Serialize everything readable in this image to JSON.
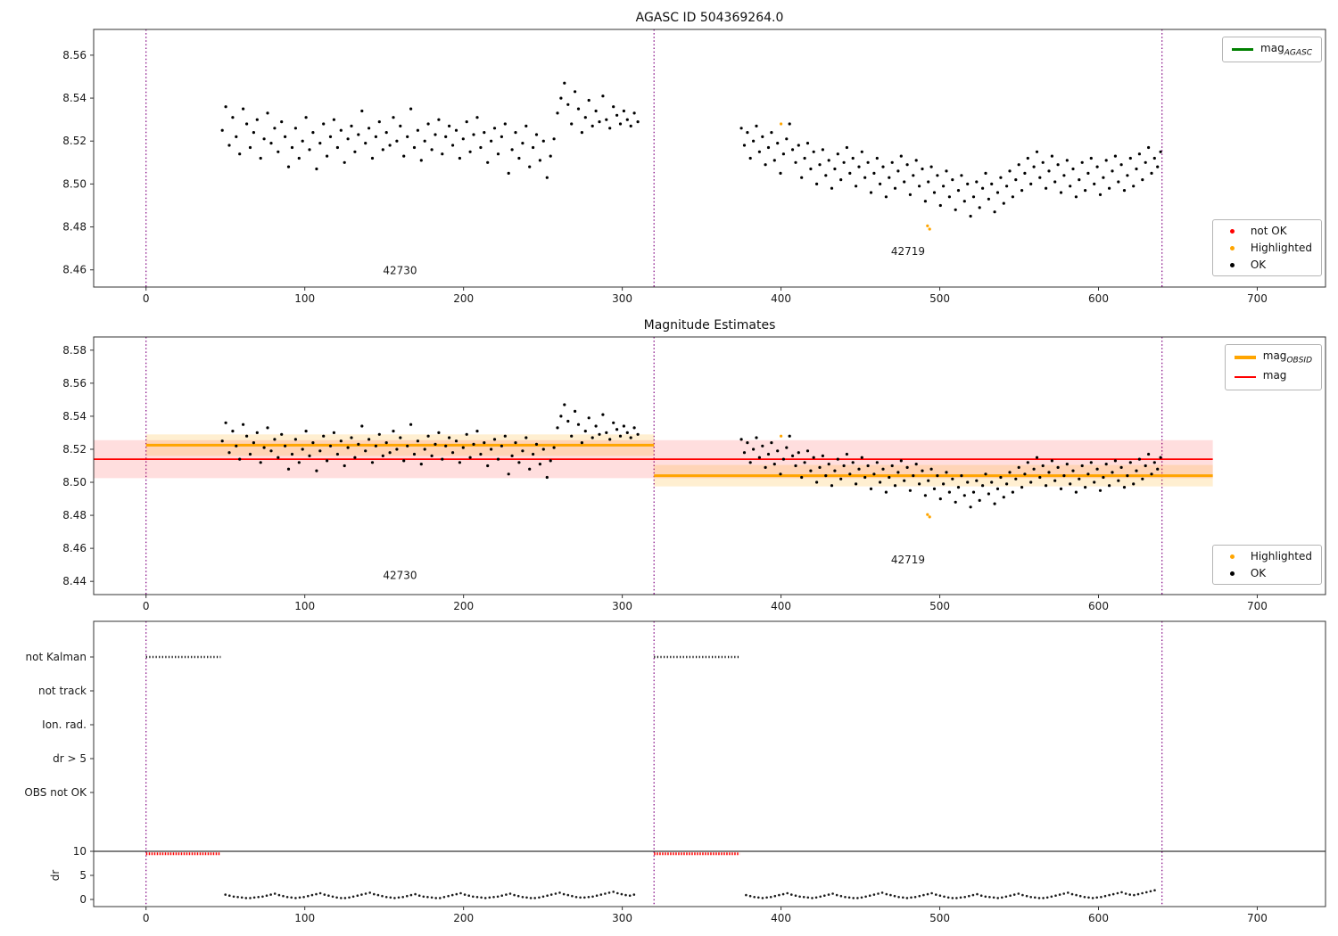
{
  "figure": {
    "panel1_title": "AGASC ID 504369264.0",
    "panel2_title": "Magnitude Estimates"
  },
  "datasets": {
    "d42730": {
      "x0": 48,
      "dx": 2.2,
      "y": [
        8.525,
        8.536,
        8.518,
        8.531,
        8.522,
        8.514,
        8.535,
        8.528,
        8.517,
        8.524,
        8.53,
        8.512,
        8.521,
        8.533,
        8.519,
        8.526,
        8.515,
        8.529,
        8.522,
        8.508,
        8.517,
        8.526,
        8.512,
        8.52,
        8.531,
        8.516,
        8.524,
        8.507,
        8.519,
        8.528,
        8.513,
        8.522,
        8.53,
        8.517,
        8.525,
        8.51,
        8.521,
        8.527,
        8.515,
        8.523,
        8.534,
        8.519,
        8.526,
        8.512,
        8.522,
        8.529,
        8.516,
        8.524,
        8.518,
        8.531,
        8.52,
        8.527,
        8.513,
        8.522,
        8.535,
        8.517,
        8.525,
        8.511,
        8.52,
        8.528,
        8.516,
        8.523,
        8.53,
        8.514,
        8.522,
        8.527,
        8.518,
        8.525,
        8.512,
        8.521,
        8.529,
        8.515,
        8.523,
        8.531,
        8.517,
        8.524,
        8.51,
        8.52,
        8.526,
        8.514,
        8.522,
        8.528,
        8.505,
        8.516,
        8.524,
        8.512,
        8.519,
        8.527,
        8.508,
        8.517,
        8.523,
        8.511,
        8.52,
        8.503,
        8.513,
        8.521,
        8.533,
        8.54,
        8.547,
        8.537,
        8.528,
        8.543,
        8.535,
        8.524,
        8.531,
        8.539,
        8.527,
        8.534,
        8.529,
        8.541,
        8.53,
        8.526,
        8.536,
        8.532,
        8.528,
        8.534,
        8.53,
        8.527,
        8.533,
        8.529
      ]
    },
    "d42719": {
      "x0": 375,
      "dx": 1.9,
      "y": [
        8.526,
        8.518,
        8.524,
        8.512,
        8.52,
        8.527,
        8.515,
        8.522,
        8.509,
        8.517,
        8.524,
        8.511,
        8.519,
        8.505,
        8.514,
        8.521,
        8.528,
        8.516,
        8.51,
        8.518,
        8.503,
        8.512,
        8.519,
        8.507,
        8.515,
        8.5,
        8.509,
        8.516,
        8.504,
        8.511,
        8.498,
        8.507,
        8.514,
        8.502,
        8.51,
        8.517,
        8.505,
        8.512,
        8.499,
        8.508,
        8.515,
        8.503,
        8.51,
        8.496,
        8.505,
        8.512,
        8.5,
        8.508,
        8.494,
        8.503,
        8.51,
        8.498,
        8.506,
        8.513,
        8.501,
        8.509,
        8.495,
        8.504,
        8.511,
        8.499,
        8.507,
        8.492,
        8.501,
        8.508,
        8.496,
        8.504,
        8.49,
        8.499,
        8.506,
        8.494,
        8.502,
        8.488,
        8.497,
        8.504,
        8.492,
        8.5,
        8.485,
        8.494,
        8.501,
        8.489,
        8.498,
        8.505,
        8.493,
        8.5,
        8.487,
        8.496,
        8.503,
        8.491,
        8.499,
        8.506,
        8.494,
        8.502,
        8.509,
        8.497,
        8.505,
        8.512,
        8.5,
        8.508,
        8.515,
        8.503,
        8.51,
        8.498,
        8.506,
        8.513,
        8.501,
        8.509,
        8.496,
        8.504,
        8.511,
        8.499,
        8.507,
        8.494,
        8.502,
        8.51,
        8.497,
        8.505,
        8.512,
        8.5,
        8.508,
        8.495,
        8.503,
        8.511,
        8.498,
        8.506,
        8.513,
        8.501,
        8.509,
        8.497,
        8.504,
        8.512,
        8.499,
        8.507,
        8.514,
        8.502,
        8.51,
        8.517,
        8.505,
        8.512,
        8.508,
        8.515
      ]
    },
    "hl": {
      "pairs": [
        [
          400,
          8.528
        ],
        [
          492.3,
          8.4805
        ],
        [
          493.6,
          8.479
        ]
      ]
    },
    "drA": {
      "x0": 50,
      "dx": 2.6,
      "y": [
        1.0,
        0.8,
        0.6,
        0.5,
        0.4,
        0.3,
        0.3,
        0.4,
        0.5,
        0.6,
        0.8,
        1.0,
        1.2,
        0.9,
        0.7,
        0.5,
        0.4,
        0.3,
        0.4,
        0.5,
        0.7,
        0.9,
        1.1,
        1.3,
        1.0,
        0.8,
        0.6,
        0.4,
        0.3,
        0.3,
        0.4,
        0.6,
        0.8,
        1.0,
        1.2,
        1.4,
        1.1,
        0.9,
        0.7,
        0.5,
        0.4,
        0.3,
        0.4,
        0.5,
        0.7,
        0.9,
        1.1,
        0.8,
        0.6,
        0.5,
        0.4,
        0.3,
        0.3,
        0.5,
        0.7,
        0.9,
        1.1,
        1.3,
        1.0,
        0.8,
        0.6,
        0.5,
        0.4,
        0.3,
        0.4,
        0.5,
        0.6,
        0.8,
        1.0,
        1.2,
        0.9,
        0.7,
        0.5,
        0.4,
        0.3,
        0.3,
        0.4,
        0.6,
        0.8,
        1.0,
        1.2,
        1.4,
        1.1,
        0.9,
        0.7,
        0.5,
        0.4,
        0.4,
        0.5,
        0.6,
        0.8,
        1.0,
        1.2,
        1.4,
        1.6,
        1.3,
        1.1,
        0.9,
        0.8,
        1.0
      ]
    },
    "drB": {
      "x0": 378,
      "dx": 2.6,
      "y": [
        0.9,
        0.7,
        0.5,
        0.4,
        0.3,
        0.4,
        0.5,
        0.7,
        0.9,
        1.1,
        1.3,
        1.0,
        0.8,
        0.6,
        0.5,
        0.4,
        0.3,
        0.4,
        0.6,
        0.8,
        1.0,
        1.2,
        0.9,
        0.7,
        0.5,
        0.4,
        0.3,
        0.3,
        0.4,
        0.6,
        0.8,
        1.0,
        1.2,
        1.4,
        1.1,
        0.9,
        0.7,
        0.5,
        0.4,
        0.3,
        0.4,
        0.5,
        0.7,
        0.9,
        1.1,
        1.3,
        1.0,
        0.8,
        0.6,
        0.4,
        0.3,
        0.3,
        0.4,
        0.5,
        0.7,
        0.9,
        1.1,
        0.8,
        0.6,
        0.5,
        0.4,
        0.3,
        0.4,
        0.6,
        0.8,
        1.0,
        1.2,
        0.9,
        0.7,
        0.5,
        0.4,
        0.3,
        0.3,
        0.4,
        0.6,
        0.8,
        1.0,
        1.2,
        1.4,
        1.1,
        0.9,
        0.7,
        0.5,
        0.4,
        0.3,
        0.4,
        0.5,
        0.7,
        0.9,
        1.1,
        1.3,
        1.5,
        1.2,
        1.0,
        0.9,
        1.1,
        1.3,
        1.5,
        1.7,
        1.9
      ]
    }
  },
  "chart_data": [
    {
      "type": "scatter",
      "title": "AGASC ID 504369264.0",
      "xlim": [
        -33,
        743
      ],
      "ylim": [
        8.452,
        8.572
      ],
      "xticks": [
        0,
        100,
        200,
        300,
        400,
        500,
        600,
        700
      ],
      "yticks": [
        8.46,
        8.48,
        8.5,
        8.52,
        8.54,
        8.56
      ],
      "vlines": {
        "x": [
          0,
          320,
          640
        ],
        "color": "#800080",
        "style": "dotted"
      },
      "annotations": [
        {
          "text": "42730",
          "x": 160,
          "y": 8.458
        },
        {
          "text": "42719",
          "x": 480,
          "y": 8.467
        }
      ],
      "legend_top": [
        {
          "label_main": "mag",
          "label_sub": "AGASC",
          "color": "#008000",
          "type": "line"
        }
      ],
      "legend_bottom": [
        {
          "label": "not OK",
          "color": "#ff0000"
        },
        {
          "label": "Highlighted",
          "color": "#ffa500"
        },
        {
          "label": "OK",
          "color": "#000000"
        }
      ],
      "series": [
        {
          "name": "OK obsid 42730",
          "color": "#000000",
          "data": "d42730"
        },
        {
          "name": "OK obsid 42719",
          "color": "#000000",
          "data": "d42719"
        },
        {
          "name": "Highlighted",
          "color": "#ffa500",
          "data": "hl"
        }
      ]
    },
    {
      "type": "scatter",
      "title": "Magnitude Estimates",
      "xlim": [
        -33,
        743
      ],
      "ylim": [
        8.432,
        8.588
      ],
      "xticks": [
        0,
        100,
        200,
        300,
        400,
        500,
        600,
        700
      ],
      "yticks": [
        8.44,
        8.46,
        8.48,
        8.5,
        8.52,
        8.54,
        8.56,
        8.58
      ],
      "vlines": {
        "x": [
          0,
          320,
          640
        ],
        "color": "#800080",
        "style": "dotted"
      },
      "mag_line": {
        "y": 8.514,
        "x1": -33,
        "x2": 672,
        "band": 0.0115,
        "color": "#ff0000"
      },
      "obsid_lines": [
        {
          "x1": 0,
          "x2": 320,
          "y": 8.5225,
          "band": 0.0065,
          "color": "#ffa500"
        },
        {
          "x1": 320,
          "x2": 672,
          "y": 8.504,
          "band": 0.0065,
          "color": "#ffa500"
        }
      ],
      "annotations": [
        {
          "text": "42730",
          "x": 160,
          "y": 8.4415
        },
        {
          "text": "42719",
          "x": 480,
          "y": 8.451
        }
      ],
      "legend_top": [
        {
          "label_main": "mag",
          "label_sub": "OBSID",
          "color": "#ffa500",
          "type": "line-thick"
        },
        {
          "label_main": "mag",
          "label_sub": "",
          "color": "#ff0000",
          "type": "line"
        }
      ],
      "legend_bottom": [
        {
          "label": "Highlighted",
          "color": "#ffa500"
        },
        {
          "label": "OK",
          "color": "#000000"
        }
      ],
      "series": [
        {
          "name": "OK obsid 42730",
          "color": "#000000",
          "data": "d42730"
        },
        {
          "name": "OK obsid 42719",
          "color": "#000000",
          "data": "d42719"
        },
        {
          "name": "Highlighted",
          "color": "#ffa500",
          "data": "hl"
        }
      ]
    },
    {
      "type": "scatter",
      "title": "",
      "xlim": [
        -33,
        743
      ],
      "xticks": [
        0,
        100,
        200,
        300,
        400,
        500,
        600,
        700
      ],
      "vlines": {
        "x": [
          0,
          320,
          640
        ],
        "color": "#800080",
        "style": "dotted"
      },
      "rows": [
        "not Kalman",
        "not track",
        "Ion. rad.",
        "dr > 5",
        "OBS not OK"
      ],
      "row_segments": [
        {
          "row": 0,
          "x1": 0,
          "x2": 47
        },
        {
          "row": 0,
          "x1": 320,
          "x2": 374
        }
      ],
      "dr_axis": {
        "label": "dr",
        "ticks": [
          0,
          5,
          10
        ],
        "hline": 10
      },
      "dr_red_segments": [
        {
          "x1": 0,
          "x2": 47,
          "y": 9.5
        },
        {
          "x1": 320,
          "x2": 374,
          "y": 9.5
        }
      ],
      "dr_series": [
        {
          "name": "dr obsid 42730",
          "color": "#1a1a1a",
          "data": "drA"
        },
        {
          "name": "dr obsid 42719",
          "color": "#1a1a1a",
          "data": "drB"
        }
      ]
    }
  ]
}
